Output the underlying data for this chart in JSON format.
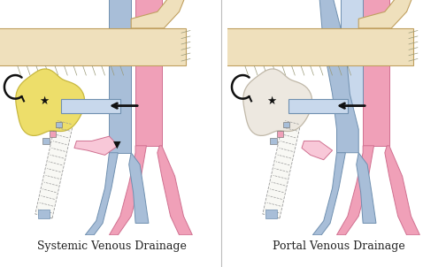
{
  "left_label": "Systemic Venous Drainage",
  "right_label": "Portal Venous Drainage",
  "bg_color": "#ffffff",
  "fig_width": 5.04,
  "fig_height": 3.02,
  "dpi": 100,
  "label_fontsize": 9,
  "pink": "#F0A0B8",
  "pink_light": "#F8C8D8",
  "pink_dark": "#D07090",
  "blue": "#A8BED8",
  "blue_light": "#C8D8EC",
  "blue_dark": "#7090B0",
  "cream": "#EFE0BC",
  "cream_dark": "#D8C090",
  "cream_edge": "#C0A060",
  "yellow": "#EDDE6A",
  "yellow_dark": "#C8B840",
  "white_organ": "#EDE8E0",
  "white_organ_edge": "#C0B8A8",
  "gray_dash": "#999999",
  "black": "#111111",
  "border": "#CCCCCC"
}
